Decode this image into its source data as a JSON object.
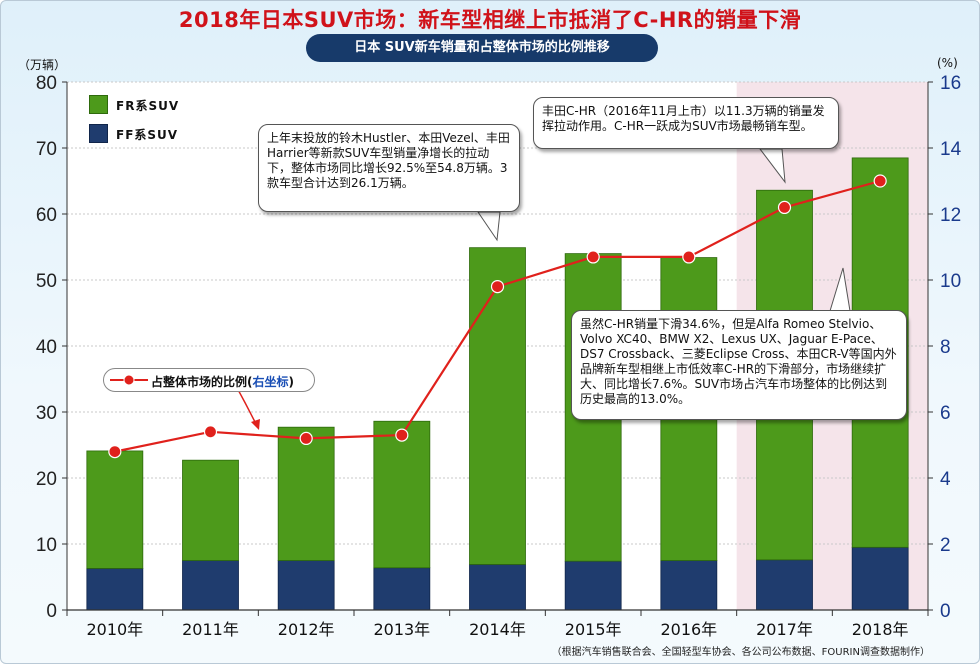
{
  "title": "2018年日本SUV市场：新车型相继上市抵消了C-HR的销量下滑",
  "subtitle": "日本  SUV新车销量和占整体市场的比例推移",
  "left_unit": "（万辆）",
  "right_unit": "(%)",
  "legend": {
    "fr": "FR系SUV",
    "ff": "FF系SUV",
    "pct_main": "占整体市场的比例(",
    "pct_axis": "右坐标",
    "pct_close": ")"
  },
  "callouts": {
    "c2014": "上年末投放的铃木Hustler、本田Vezel、丰田Harrier等新款SUV车型销量净增长的拉动下，整体市场同比增长92.5%至54.8万辆。3款车型合计达到26.1万辆。",
    "c2017": "丰田C-HR（2016年11月上市）以11.3万辆的销量发挥拉动作用。C-HR一跃成为SUV市场最畅销车型。",
    "c2018": "虽然C-HR销量下滑34.6%，但是Alfa Romeo Stelvio、Volvo XC40、BMW X2、Lexus UX、Jaguar E-Pace、DS7 Crossback、三菱Eclipse Cross、本田CR-V等国内外品牌新车型相继上市低效率C-HR的下滑部分，市场继续扩大、同比增长7.6%。SUV市场占汽车市场整体的比例达到历史最高的13.0%。"
  },
  "source": "（根据汽车销售联合会、全国轻型车协会、各公司公布数据、FOURIN调查数据制作）",
  "colors": {
    "fr_green": "#4d9a1b",
    "ff_navy": "#1f3c6e",
    "line_red": "#e0211c",
    "highlight": "#f5e4ea"
  },
  "chart_data": {
    "type": "bar",
    "stacked": true,
    "categories": [
      "2010年",
      "2011年",
      "2012年",
      "2013年",
      "2014年",
      "2015年",
      "2016年",
      "2017年",
      "2018年"
    ],
    "series": [
      {
        "name": "FF系SUV",
        "axis": "left",
        "values": [
          6.3,
          7.5,
          7.5,
          6.4,
          6.9,
          7.4,
          7.5,
          7.6,
          9.5
        ]
      },
      {
        "name": "FR系SUV",
        "axis": "left",
        "values": [
          17.8,
          15.2,
          20.2,
          22.2,
          48.0,
          46.6,
          45.9,
          56.0,
          59.0
        ]
      },
      {
        "name": "占整体市场的比例",
        "type": "line",
        "axis": "right",
        "values": [
          4.8,
          5.4,
          5.2,
          5.3,
          9.8,
          10.7,
          10.7,
          12.2,
          13.0
        ]
      }
    ],
    "ylim_left": [
      0,
      80
    ],
    "yticks_left": [
      0,
      10,
      20,
      30,
      40,
      50,
      60,
      70,
      80
    ],
    "ylim_right": [
      0,
      16
    ],
    "yticks_right": [
      0,
      2,
      4,
      6,
      8,
      10,
      12,
      14,
      16
    ],
    "ylabel_left": "（万辆）",
    "ylabel_right": "(%)",
    "highlighted_categories": [
      "2017年",
      "2018年"
    ]
  }
}
